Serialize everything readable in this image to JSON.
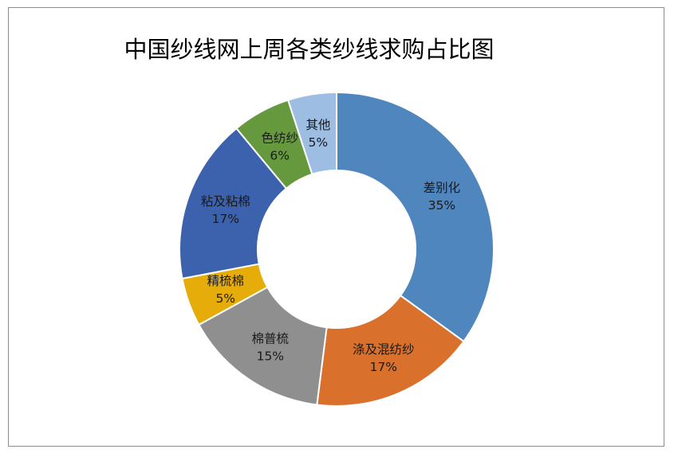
{
  "chart_data": {
    "type": "pie",
    "style": "donut",
    "title": "中国纱线网上周各类纱线求购占比图",
    "grid": false,
    "legend": "none",
    "slices": [
      {
        "label": "差别化",
        "pct_label": "35%",
        "value": 35,
        "color": "#4f86bd"
      },
      {
        "label": "涤及混纺纱",
        "pct_label": "17%",
        "value": 17,
        "color": "#d9702c"
      },
      {
        "label": "棉普梳",
        "pct_label": "15%",
        "value": 15,
        "color": "#8f8f8f"
      },
      {
        "label": "精梳棉",
        "pct_label": "5%",
        "value": 5,
        "color": "#e6ac0a"
      },
      {
        "label": "粘及粘棉",
        "pct_label": "17%",
        "value": 17,
        "color": "#3d62ad"
      },
      {
        "label": "色纺纱",
        "pct_label": "6%",
        "value": 6,
        "color": "#66993d"
      },
      {
        "label": "其他",
        "pct_label": "5%",
        "value": 5,
        "color": "#9dbde3"
      }
    ]
  }
}
